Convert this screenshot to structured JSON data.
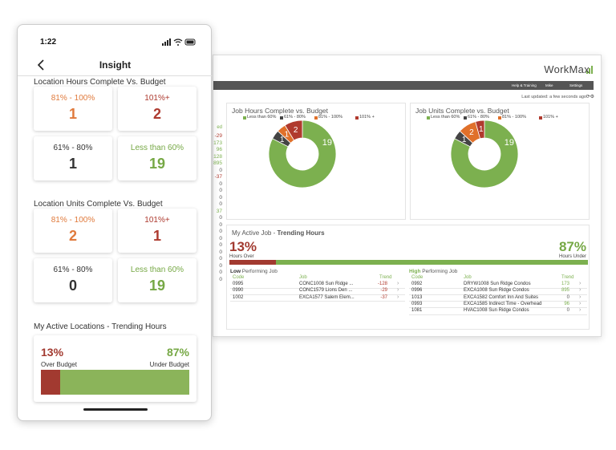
{
  "phone": {
    "status_time": "1:22",
    "title": "Insight",
    "hours": {
      "title": "Location Hours Complete Vs. Budget",
      "tiles": [
        {
          "label": "81% - 100%",
          "value": 1,
          "color": "#e07a3c"
        },
        {
          "label": "101%+",
          "value": 2,
          "color": "#ad3a2f"
        },
        {
          "label": "61% - 80%",
          "value": 1,
          "color": "#333333"
        },
        {
          "label": "Less than 60%",
          "value": 19,
          "color": "#76a845"
        }
      ]
    },
    "units": {
      "title": "Location Units Complete Vs. Budget",
      "tiles": [
        {
          "label": "81% - 100%",
          "value": 2,
          "color": "#e07a3c"
        },
        {
          "label": "101%+",
          "value": 1,
          "color": "#ad3a2f"
        },
        {
          "label": "61% - 80%",
          "value": 0,
          "color": "#333333"
        },
        {
          "label": "Less than 60%",
          "value": 19,
          "color": "#76a845"
        }
      ]
    },
    "trending": {
      "title": "My Active Locations - Trending Hours",
      "over": {
        "value": 13,
        "label": "13%"
      },
      "under": {
        "value": 87,
        "label": "87%"
      },
      "over_label": "Over Budget",
      "under_label": "Under Budget"
    }
  },
  "dashboard": {
    "logo": "WorkMax",
    "nav": [
      "Help & Training",
      "Mike",
      "Settings"
    ],
    "last_updated": "Last updated: a few seconds ago",
    "partial_column": {
      "header": "ed",
      "values": [
        -29,
        173,
        96,
        128,
        895,
        0,
        -37,
        0,
        0,
        0,
        0,
        37,
        0,
        0,
        0,
        0,
        0,
        0,
        0,
        0,
        0,
        0
      ]
    },
    "job_hours": {
      "title": "Job Hours Complete vs. Budget",
      "categories": [
        "Less than 60%",
        "61% - 80%",
        "81% - 100%",
        "101% +"
      ],
      "values": [
        19,
        1,
        1,
        2
      ],
      "colors": [
        "#7cb04f",
        "#444444",
        "#e0702a",
        "#b03a2e"
      ]
    },
    "job_units": {
      "title": "Job Units Complete vs. Budget",
      "categories": [
        "Less than 60%",
        "61% - 80%",
        "81% - 100%",
        "101% +"
      ],
      "values": [
        19,
        1,
        2,
        1
      ],
      "colors": [
        "#7cb04f",
        "#444444",
        "#e0702a",
        "#b03a2e"
      ]
    },
    "trending": {
      "title_prefix": "My Active Job - ",
      "title_bold": "Trending Hours",
      "over": {
        "value": 13,
        "label": "13%"
      },
      "under": {
        "value": 87,
        "label": "87%"
      },
      "over_label": "Hours Over",
      "under_label": "Hours Under",
      "low": {
        "title_bold": "Low",
        "title_rest": " Performing Job",
        "headers": [
          "Code",
          "Job",
          "Trend"
        ],
        "rows": [
          [
            "0995",
            "CONC1008 Sun Ridge ...",
            -128
          ],
          [
            "0990",
            "CONC1579 Lions Den ...",
            -29
          ],
          [
            "1002",
            "EXCA1577 Salem Elem...",
            -37
          ]
        ]
      },
      "high": {
        "title_bold": "High",
        "title_rest": " Performing Job",
        "headers": [
          "Code",
          "Job",
          "Trend"
        ],
        "rows": [
          [
            "0992",
            "DRYW1008 Sun Ridge Condos",
            173
          ],
          [
            "0996",
            "EXCA1008 Sun Ridge Condos",
            895
          ],
          [
            "1013",
            "EXCA1582 Comfort Inn And Suites",
            0
          ],
          [
            "0993",
            "EXCA1585 Indirect Time - Overhead",
            96
          ],
          [
            "1081",
            "HVAC1008 Sun Ridge Condos",
            0
          ]
        ]
      }
    }
  }
}
